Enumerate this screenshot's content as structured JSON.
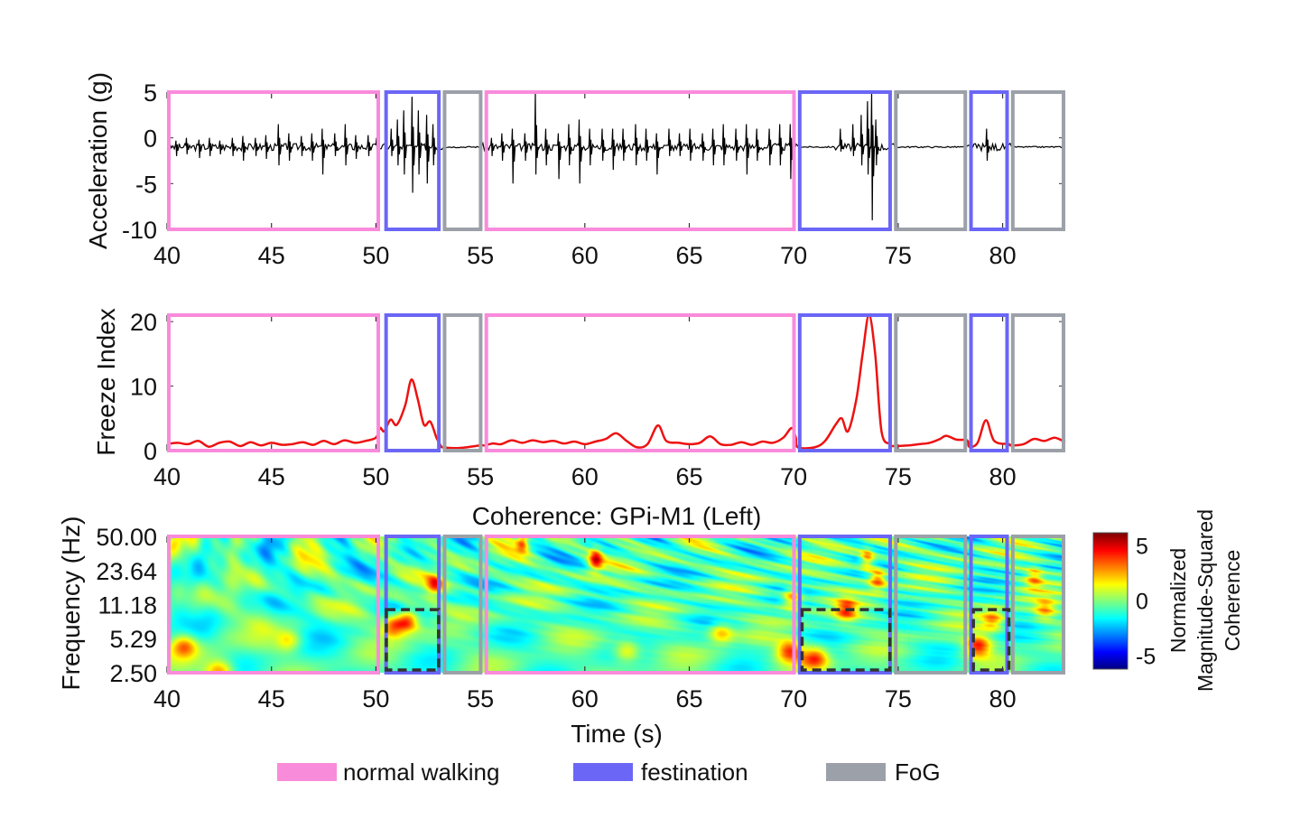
{
  "colors": {
    "normal walking": "#f98bdb",
    "festination": "#6b66f5",
    "FoG": "#9ca0a8",
    "acceleration_line": "#000000",
    "freeze_line": "#ee1111",
    "dashed_box": "#333333"
  },
  "legend": [
    {
      "label": "normal walking",
      "key": "normal walking"
    },
    {
      "label": "festination",
      "key": "festination"
    },
    {
      "label": "FoG",
      "key": "FoG"
    }
  ],
  "chart_data": [
    {
      "type": "line",
      "ylabel": "Acceleration (g)",
      "xlim": [
        40,
        83
      ],
      "ylim": [
        -10,
        5
      ],
      "xticks": [
        40,
        45,
        50,
        55,
        60,
        65,
        70,
        75,
        80
      ],
      "yticks": [
        5,
        0,
        -5,
        -10
      ],
      "baseline": -1,
      "segments": [
        {
          "phase": "normal walking",
          "start": 40,
          "end": 50.2
        },
        {
          "phase": "festination",
          "start": 50.4,
          "end": 53.1
        },
        {
          "phase": "FoG",
          "start": 53.2,
          "end": 55.1
        },
        {
          "phase": "normal walking",
          "start": 55.2,
          "end": 70.1
        },
        {
          "phase": "festination",
          "start": 70.2,
          "end": 74.7
        },
        {
          "phase": "FoG",
          "start": 74.8,
          "end": 78.3
        },
        {
          "phase": "festination",
          "start": 78.4,
          "end": 80.3
        },
        {
          "phase": "FoG",
          "start": 80.4,
          "end": 83
        }
      ],
      "spikes_t_max_min": [
        [
          40.4,
          -0.3,
          -2
        ],
        [
          40.9,
          0,
          -1.8
        ],
        [
          41.5,
          -0.2,
          -2.2
        ],
        [
          42,
          0,
          -2
        ],
        [
          42.5,
          -0.3,
          -1.8
        ],
        [
          43.1,
          0,
          -2
        ],
        [
          43.6,
          0.2,
          -2.5
        ],
        [
          44.2,
          0,
          -2
        ],
        [
          44.7,
          0.3,
          -2.3
        ],
        [
          45.3,
          1.5,
          -3
        ],
        [
          45.8,
          0.5,
          -2.5
        ],
        [
          46.4,
          0.2,
          -2
        ],
        [
          46.9,
          0.5,
          -2.5
        ],
        [
          47.4,
          1,
          -4
        ],
        [
          48,
          0.5,
          -2
        ],
        [
          48.5,
          1.5,
          -3
        ],
        [
          49,
          0.3,
          -2.3
        ],
        [
          49.6,
          0.3,
          -2
        ],
        [
          50,
          0,
          -1.8
        ],
        [
          50.7,
          1,
          -2
        ],
        [
          51,
          2,
          -3
        ],
        [
          51.3,
          3,
          -4
        ],
        [
          51.7,
          4.5,
          -6
        ],
        [
          52,
          3,
          -4
        ],
        [
          52.4,
          2.5,
          -5
        ],
        [
          52.7,
          1.5,
          -3
        ],
        [
          55.5,
          0,
          -2
        ],
        [
          56,
          0.5,
          -2.5
        ],
        [
          56.5,
          1,
          -5
        ],
        [
          57.1,
          0.5,
          -2.5
        ],
        [
          57.6,
          5,
          -4
        ],
        [
          58.1,
          1,
          -3
        ],
        [
          58.7,
          0.5,
          -4.5
        ],
        [
          59.2,
          1.5,
          -3
        ],
        [
          59.7,
          2,
          -5
        ],
        [
          60.2,
          1,
          -3
        ],
        [
          60.8,
          1,
          -2.5
        ],
        [
          61.3,
          1,
          -3.5
        ],
        [
          61.8,
          1,
          -2.5
        ],
        [
          62.4,
          1.5,
          -3
        ],
        [
          62.9,
          1,
          -2.5
        ],
        [
          63.4,
          0.5,
          -4
        ],
        [
          64,
          1,
          -2
        ],
        [
          64.5,
          0.5,
          -2
        ],
        [
          65,
          1,
          -2.5
        ],
        [
          65.6,
          0.5,
          -2.5
        ],
        [
          66.1,
          1,
          -3
        ],
        [
          66.6,
          1.5,
          -3
        ],
        [
          67.2,
          1,
          -2.5
        ],
        [
          67.7,
          1.5,
          -4
        ],
        [
          68.2,
          1,
          -2.5
        ],
        [
          68.8,
          1,
          -3
        ],
        [
          69.3,
          1.5,
          -3
        ],
        [
          69.8,
          1.5,
          -4.5
        ],
        [
          72.2,
          1,
          -1.5
        ],
        [
          72.8,
          1.5,
          -2
        ],
        [
          73.2,
          2.5,
          -3
        ],
        [
          73.5,
          4,
          -4
        ],
        [
          73.7,
          5,
          -9
        ],
        [
          73.9,
          2,
          -3
        ],
        [
          79.2,
          1,
          -2.5
        ]
      ]
    },
    {
      "type": "line",
      "ylabel": "Freeze Index",
      "xlim": [
        40,
        83
      ],
      "ylim": [
        0,
        21
      ],
      "xticks": [
        40,
        45,
        50,
        55,
        60,
        65,
        70,
        75,
        80
      ],
      "yticks": [
        20,
        10,
        0
      ],
      "points": [
        [
          40,
          1
        ],
        [
          40.5,
          1.2
        ],
        [
          41,
          1
        ],
        [
          41.5,
          1.5
        ],
        [
          42,
          0.6
        ],
        [
          42.5,
          1.2
        ],
        [
          43,
          1.4
        ],
        [
          43.5,
          0.7
        ],
        [
          44,
          1.3
        ],
        [
          44.5,
          0.8
        ],
        [
          45,
          1.2
        ],
        [
          45.5,
          0.9
        ],
        [
          46,
          1
        ],
        [
          46.5,
          1.3
        ],
        [
          47,
          0.9
        ],
        [
          47.5,
          1.5
        ],
        [
          48,
          1
        ],
        [
          48.5,
          1.6
        ],
        [
          49,
          1.2
        ],
        [
          49.5,
          1.5
        ],
        [
          50,
          2
        ],
        [
          50.2,
          3.5
        ],
        [
          50.4,
          3
        ],
        [
          50.7,
          4.8
        ],
        [
          51,
          4
        ],
        [
          51.4,
          7
        ],
        [
          51.7,
          11
        ],
        [
          52,
          8
        ],
        [
          52.3,
          4
        ],
        [
          52.6,
          4.5
        ],
        [
          52.9,
          2
        ],
        [
          53.1,
          0.8
        ],
        [
          53.2,
          0.5
        ],
        [
          54,
          0.4
        ],
        [
          55,
          0.8
        ],
        [
          55.2,
          0.8
        ],
        [
          55.6,
          1.1
        ],
        [
          56,
          1
        ],
        [
          56.5,
          1.6
        ],
        [
          57,
          1.2
        ],
        [
          57.5,
          1.6
        ],
        [
          58,
          1.3
        ],
        [
          58.5,
          1.5
        ],
        [
          59,
          1.1
        ],
        [
          59.5,
          1.4
        ],
        [
          60,
          1
        ],
        [
          60.5,
          1.4
        ],
        [
          61,
          1.8
        ],
        [
          61.5,
          2.7
        ],
        [
          62,
          1.5
        ],
        [
          62.5,
          0.5
        ],
        [
          63,
          1
        ],
        [
          63.5,
          3.9
        ],
        [
          63.9,
          1.5
        ],
        [
          64.5,
          1.2
        ],
        [
          65,
          1
        ],
        [
          65.5,
          1.2
        ],
        [
          66,
          2.2
        ],
        [
          66.5,
          1
        ],
        [
          67,
          0.9
        ],
        [
          67.5,
          1.3
        ],
        [
          68,
          0.9
        ],
        [
          68.5,
          1.4
        ],
        [
          69,
          1.2
        ],
        [
          69.5,
          2
        ],
        [
          69.9,
          3.5
        ],
        [
          70.1,
          2
        ],
        [
          70.2,
          0.5
        ],
        [
          71,
          0.5
        ],
        [
          71.5,
          1.5
        ],
        [
          72,
          4
        ],
        [
          72.3,
          5
        ],
        [
          72.6,
          3
        ],
        [
          73,
          8
        ],
        [
          73.3,
          15
        ],
        [
          73.6,
          21
        ],
        [
          73.9,
          15
        ],
        [
          74.2,
          3
        ],
        [
          74.6,
          1
        ],
        [
          74.8,
          0.7
        ],
        [
          75.5,
          0.8
        ],
        [
          76,
          1
        ],
        [
          76.5,
          1.2
        ],
        [
          77,
          1.8
        ],
        [
          77.3,
          2.3
        ],
        [
          77.8,
          1.7
        ],
        [
          78.3,
          1.6
        ],
        [
          78.4,
          0.6
        ],
        [
          78.8,
          1.2
        ],
        [
          79.2,
          4.7
        ],
        [
          79.6,
          1.5
        ],
        [
          80.3,
          1
        ],
        [
          80.4,
          0.8
        ],
        [
          81,
          1
        ],
        [
          81.5,
          1.8
        ],
        [
          82,
          1.5
        ],
        [
          82.5,
          2
        ],
        [
          83,
          1.3
        ]
      ]
    },
    {
      "type": "heatmap",
      "title": "Coherence: GPi-M1 (Left)",
      "xlabel": "Time (s)",
      "ylabel": "Frequency (Hz)",
      "xlim": [
        40,
        83
      ],
      "ylim": [
        2.5,
        50
      ],
      "yscale": "log",
      "xticks": [
        40,
        45,
        50,
        55,
        60,
        65,
        70,
        75,
        80
      ],
      "yticks": [
        "50.00",
        "23.64",
        "11.18",
        "5.29",
        "2.50"
      ],
      "colormap": "jet",
      "colorbar": {
        "label": [
          "Normalized",
          "Magnitude-Squared",
          "Coherence"
        ],
        "ticks": [
          5,
          0,
          -5
        ],
        "range": [
          -6.2,
          6.2
        ]
      },
      "hotspots_t_f_value": [
        [
          42.5,
          2.6,
          4
        ],
        [
          40.8,
          4.5,
          3.5
        ],
        [
          45.8,
          5,
          2.5
        ],
        [
          51.5,
          8,
          5
        ],
        [
          50.8,
          7,
          4
        ],
        [
          52.8,
          17,
          4
        ],
        [
          60.5,
          30,
          5
        ],
        [
          57,
          45,
          4
        ],
        [
          62,
          4,
          3
        ],
        [
          66.5,
          6,
          3
        ],
        [
          69.8,
          4,
          5
        ],
        [
          69.9,
          13,
          4
        ],
        [
          71,
          3.5,
          5
        ],
        [
          72.5,
          10,
          4
        ],
        [
          73.5,
          30,
          4
        ],
        [
          74,
          20,
          4.5
        ],
        [
          78.8,
          4.5,
          5
        ],
        [
          79.5,
          8,
          3.5
        ],
        [
          81.5,
          20,
          3
        ],
        [
          82,
          10,
          3
        ]
      ],
      "dashed_regions": [
        {
          "start": 50.5,
          "end": 53,
          "fmin": 2.5,
          "fmax": 10
        },
        {
          "start": 70.4,
          "end": 74.6,
          "fmin": 2.5,
          "fmax": 10
        },
        {
          "start": 78.6,
          "end": 80.3,
          "fmin": 2.5,
          "fmax": 10
        }
      ]
    }
  ]
}
